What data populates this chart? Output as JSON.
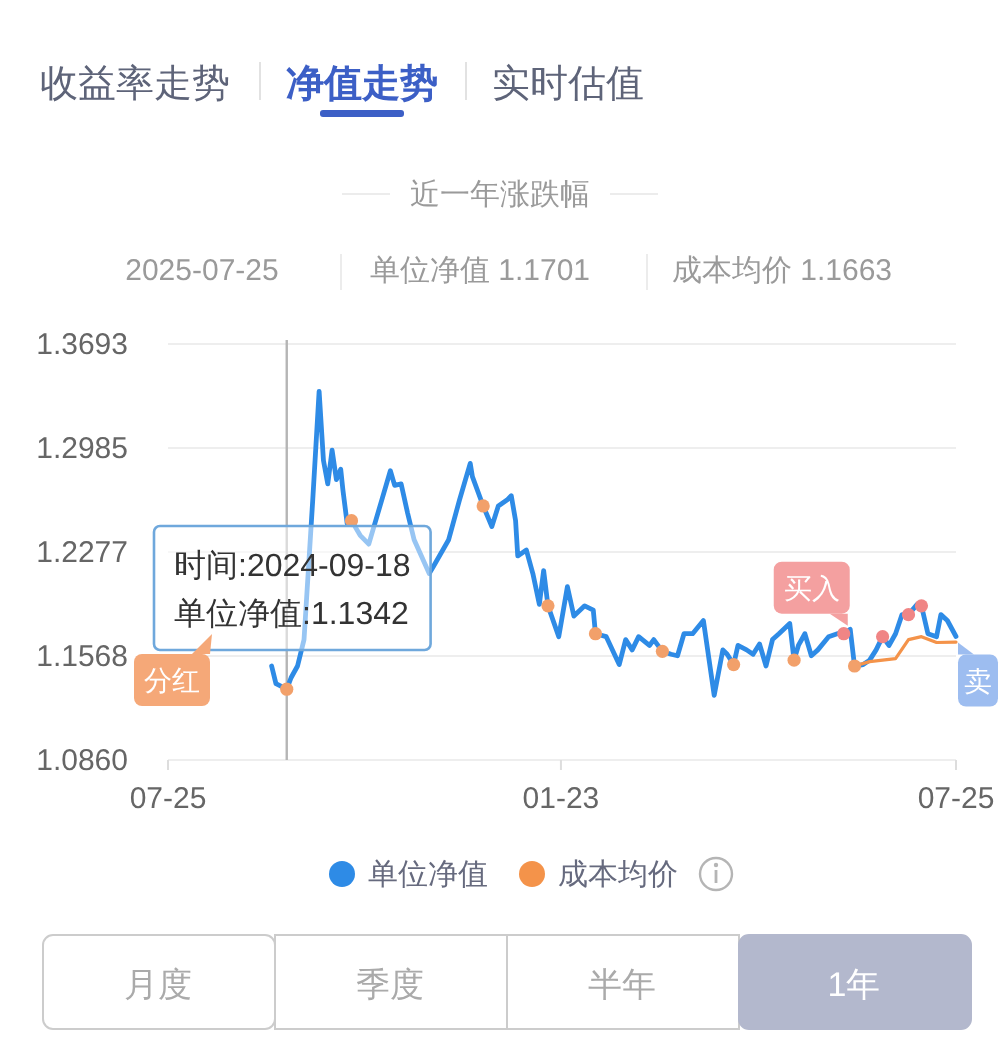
{
  "chart_data": {
    "type": "line",
    "title": "近一年涨跌幅",
    "xlim": [
      "2024-07-25",
      "2025-07-25"
    ],
    "xticks": [
      {
        "value": "2024-07-25",
        "label": "07-25"
      },
      {
        "value": "2025-01-23",
        "label": "01-23"
      },
      {
        "value": "2025-07-25",
        "label": "07-25"
      }
    ],
    "ylim": [
      1.086,
      1.3693
    ],
    "yticks": [
      {
        "value": 1.086,
        "label": "1.0860"
      },
      1.1568,
      1.2277,
      1.2985,
      1.3693
    ],
    "grid": "y",
    "legend": "bottom",
    "series": [
      {
        "name": "单位净值",
        "type": "line",
        "color": "#2e8be6",
        "x": [
          "2024-09-11",
          "2024-09-13",
          "2024-09-18",
          "2024-09-20",
          "2024-09-23",
          "2024-09-26",
          "2024-09-30",
          "2024-10-03",
          "2024-10-05",
          "2024-10-07",
          "2024-10-09",
          "2024-10-11",
          "2024-10-13",
          "2024-10-14",
          "2024-10-16",
          "2024-10-18",
          "2024-10-22",
          "2024-10-26",
          "2024-11-01",
          "2024-11-05",
          "2024-11-07",
          "2024-11-10",
          "2024-11-13",
          "2024-11-16",
          "2024-11-23",
          "2024-11-25",
          "2024-12-02",
          "2024-12-07",
          "2024-12-12",
          "2024-12-13",
          "2024-12-18",
          "2024-12-22",
          "2024-12-25",
          "2024-12-29",
          "2024-12-31",
          "2025-01-02",
          "2025-01-03",
          "2025-01-07",
          "2025-01-10",
          "2025-01-13",
          "2025-01-15",
          "2025-01-17",
          "2025-01-22",
          "2025-01-26",
          "2025-01-29",
          "2025-02-03",
          "2025-02-07",
          "2025-02-08",
          "2025-02-13",
          "2025-02-19",
          "2025-02-22",
          "2025-02-25",
          "2025-02-28",
          "2025-03-05",
          "2025-03-07",
          "2025-03-11",
          "2025-03-15",
          "2025-03-18",
          "2025-03-21",
          "2025-03-25",
          "2025-03-30",
          "2025-04-04",
          "2025-04-08",
          "2025-04-10",
          "2025-04-13",
          "2025-04-15",
          "2025-04-19",
          "2025-04-22",
          "2025-04-25",
          "2025-04-28",
          "2025-05-01",
          "2025-05-04",
          "2025-05-09",
          "2025-05-11",
          "2025-05-13",
          "2025-05-16",
          "2025-05-19",
          "2025-05-22",
          "2025-05-27",
          "2025-05-31",
          "2025-06-03",
          "2025-06-06",
          "2025-06-08",
          "2025-06-12",
          "2025-06-15",
          "2025-06-18",
          "2025-06-21",
          "2025-06-24",
          "2025-06-27",
          "2025-06-30",
          "2025-07-03",
          "2025-07-07",
          "2025-07-09",
          "2025-07-12",
          "2025-07-16",
          "2025-07-18",
          "2025-07-21",
          "2025-07-25"
        ],
        "values": [
          1.15,
          1.138,
          1.1342,
          1.142,
          1.15,
          1.168,
          1.262,
          1.337,
          1.29,
          1.274,
          1.297,
          1.277,
          1.284,
          1.27,
          1.247,
          1.249,
          1.239,
          1.233,
          1.263,
          1.283,
          1.273,
          1.274,
          1.254,
          1.236,
          1.213,
          1.218,
          1.236,
          1.263,
          1.288,
          1.279,
          1.259,
          1.245,
          1.259,
          1.263,
          1.266,
          1.249,
          1.225,
          1.229,
          1.213,
          1.192,
          1.215,
          1.191,
          1.17,
          1.204,
          1.184,
          1.191,
          1.188,
          1.172,
          1.17,
          1.151,
          1.168,
          1.161,
          1.17,
          1.164,
          1.168,
          1.16,
          1.158,
          1.157,
          1.172,
          1.172,
          1.181,
          1.13,
          1.161,
          1.158,
          1.151,
          1.164,
          1.161,
          1.158,
          1.165,
          1.15,
          1.168,
          1.172,
          1.179,
          1.154,
          1.164,
          1.172,
          1.157,
          1.161,
          1.17,
          1.172,
          1.172,
          1.175,
          1.15,
          1.151,
          1.154,
          1.161,
          1.17,
          1.164,
          1.172,
          1.185,
          1.185,
          1.192,
          1.191,
          1.172,
          1.17,
          1.185,
          1.181,
          1.1701
        ]
      },
      {
        "name": "成本均价",
        "type": "line",
        "color": "#f4934a",
        "x": [
          "2025-06-08",
          "2025-06-15",
          "2025-06-27",
          "2025-07-03",
          "2025-07-09",
          "2025-07-16",
          "2025-07-25"
        ],
        "values": [
          1.15,
          1.153,
          1.155,
          1.168,
          1.17,
          1.166,
          1.1663
        ]
      },
      {
        "type": "scatter",
        "color": "#f2a06a",
        "x": [
          "2024-09-18",
          "2024-10-18",
          "2024-12-18",
          "2025-01-17",
          "2025-02-08",
          "2025-03-11",
          "2025-04-13",
          "2025-05-11",
          "2025-06-08"
        ],
        "values": [
          1.1342,
          1.249,
          1.259,
          1.191,
          1.172,
          1.16,
          1.151,
          1.154,
          1.15
        ]
      },
      {
        "type": "scatter",
        "color": "#f08585",
        "x": [
          "2025-06-03",
          "2025-06-21",
          "2025-07-03",
          "2025-07-09"
        ],
        "values": [
          1.172,
          1.17,
          1.185,
          1.191
        ]
      }
    ],
    "ref_lines": [
      {
        "axis": "x",
        "value": "2024-09-18",
        "color": "#b5b5b5"
      }
    ],
    "annotations": [
      "收益率走势",
      "净值走势",
      "实时估值",
      "2025-07-25",
      "单位净值 1.1701",
      "成本均价 1.1663",
      "时间:2024-09-18",
      "单位净值:1.1342",
      "分红",
      {
        "text": "买入",
        "x": "2025-06-03",
        "y": 1.172
      },
      {
        "text": "卖",
        "x": "2025-07-25",
        "y": 1.1701
      },
      "月度",
      "季度",
      "半年",
      "1年"
    ]
  }
}
